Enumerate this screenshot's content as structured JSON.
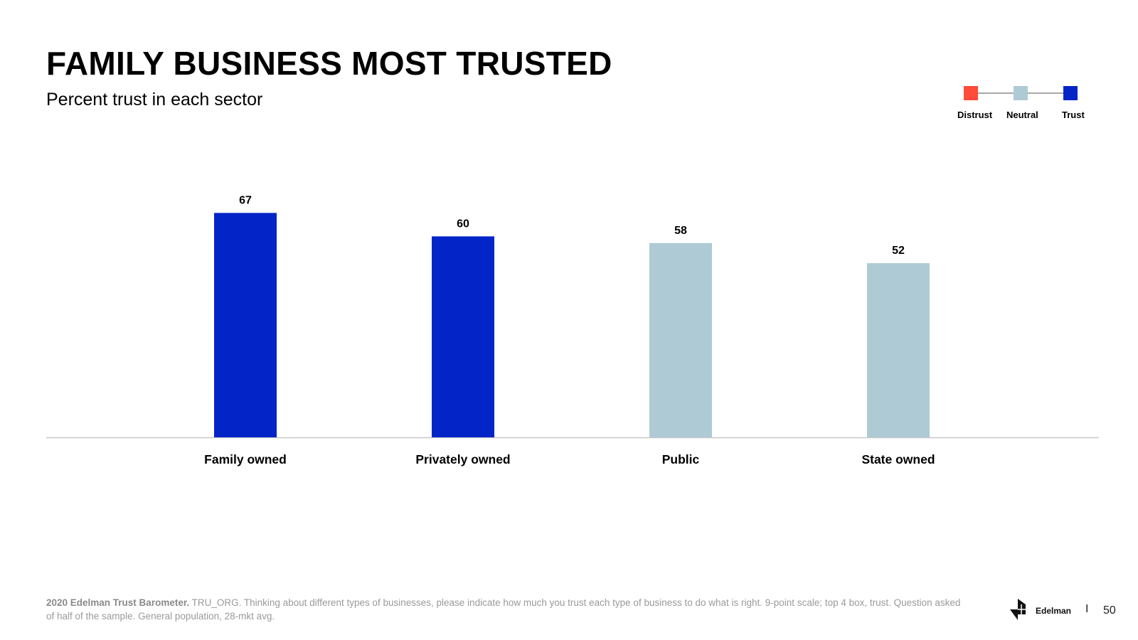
{
  "title": "FAMILY BUSINESS MOST TRUSTED",
  "subtitle": "Percent trust in each sector",
  "legend": {
    "items": [
      {
        "label": "Distrust",
        "color": "#ff4b3a"
      },
      {
        "label": "Neutral",
        "color": "#aecad4"
      },
      {
        "label": "Trust",
        "color": "#0325c8"
      }
    ]
  },
  "chart_data": {
    "type": "bar",
    "title": "FAMILY BUSINESS MOST TRUSTED",
    "subtitle": "Percent trust in each sector",
    "categories": [
      "Family owned",
      "Privately owned",
      "Public",
      "State owned"
    ],
    "values": [
      67,
      60,
      58,
      52
    ],
    "value_labels": [
      "67",
      "60",
      "58",
      "52"
    ],
    "bar_colors": [
      "#0325c8",
      "#0325c8",
      "#aecad4",
      "#aecad4"
    ],
    "bar_classes": [
      "Trust",
      "Trust",
      "Neutral",
      "Neutral"
    ],
    "xlabel": "",
    "ylabel": "",
    "ylim": [
      0,
      100
    ],
    "grid": false
  },
  "footer": {
    "source_bold": "2020 Edelman Trust Barometer.",
    "source_text": " TRU_ORG. Thinking about different types of businesses, please indicate how much you trust each type of business to do what is right. 9-point scale; top 4 box, trust. Question asked of half of the sample. General population, 28-mkt avg."
  },
  "brand": {
    "name": "Edelman",
    "separator": "I",
    "page_number": "50"
  }
}
